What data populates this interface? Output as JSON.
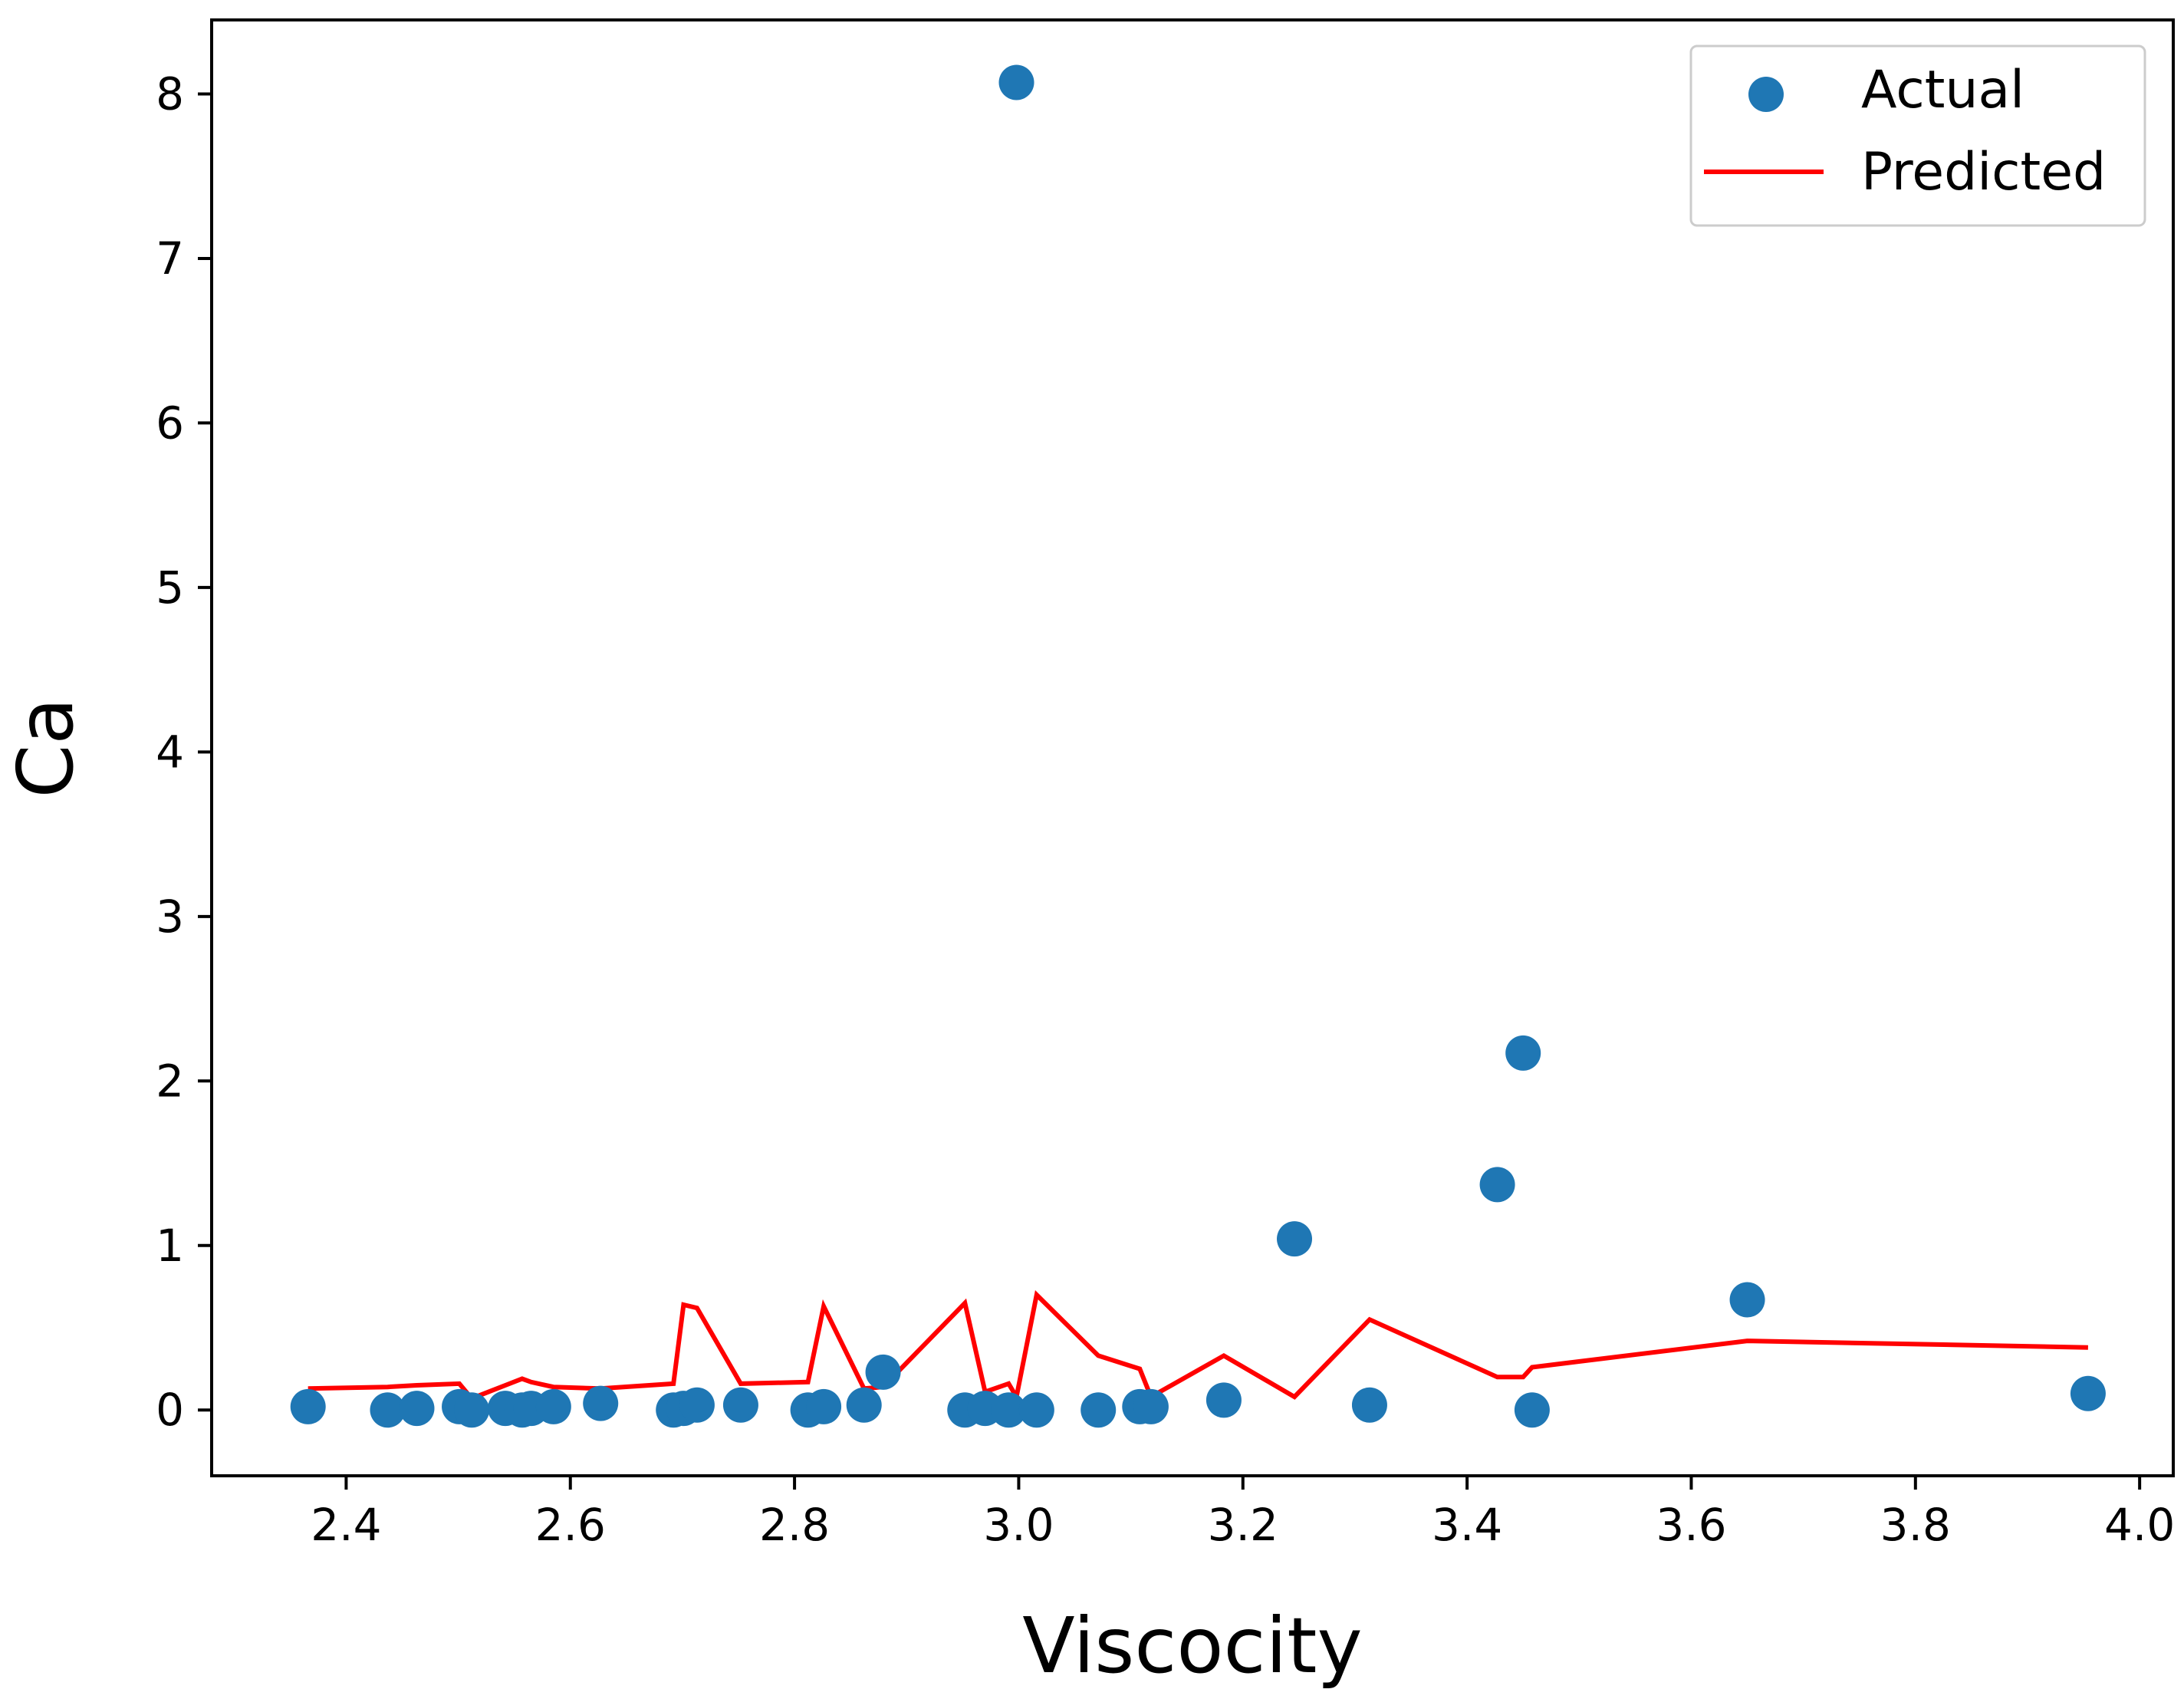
{
  "chart_data": {
    "type": "scatter",
    "title": "",
    "xlabel": "Viscocity",
    "ylabel": "Ca",
    "xlim": [
      2.28,
      4.03
    ],
    "ylim": [
      -0.4,
      8.45
    ],
    "xticks": [
      "2.4",
      "2.6",
      "2.8",
      "3.0",
      "3.2",
      "3.4",
      "3.6",
      "3.8",
      "4.0"
    ],
    "xtick_values": [
      2.4,
      2.6,
      2.8,
      3.0,
      3.2,
      3.4,
      3.6,
      3.8,
      4.0
    ],
    "yticks": [
      "0",
      "1",
      "2",
      "3",
      "4",
      "5",
      "6",
      "7",
      "8"
    ],
    "ytick_values": [
      0,
      1,
      2,
      3,
      4,
      5,
      6,
      7,
      8
    ],
    "grid": false,
    "legend": {
      "position": "top-right",
      "entries": [
        "Actual",
        "Predicted"
      ]
    },
    "colors": {
      "actual": "#1f77b4",
      "predicted": "#ff0000"
    },
    "series": [
      {
        "name": "Actual",
        "kind": "scatter",
        "x": [
          2.366,
          2.437,
          2.463,
          2.501,
          2.512,
          2.542,
          2.557,
          2.565,
          2.585,
          2.627,
          2.692,
          2.701,
          2.713,
          2.752,
          2.812,
          2.826,
          2.862,
          2.879,
          2.952,
          2.97,
          2.991,
          2.998,
          3.016,
          3.071,
          3.108,
          3.118,
          3.183,
          3.246,
          3.313,
          3.427,
          3.45,
          3.458,
          3.65,
          3.954
        ],
        "y": [
          0.02,
          0.0,
          0.01,
          0.02,
          0.0,
          0.01,
          0.0,
          0.01,
          0.02,
          0.04,
          0.0,
          0.01,
          0.03,
          0.03,
          0.0,
          0.02,
          0.03,
          0.23,
          0.0,
          0.01,
          0.0,
          8.07,
          0.0,
          0.0,
          0.02,
          0.02,
          0.06,
          1.04,
          0.03,
          1.37,
          2.17,
          0.0,
          0.67,
          0.1
        ]
      },
      {
        "name": "Predicted",
        "kind": "line",
        "x": [
          2.366,
          2.437,
          2.463,
          2.501,
          2.512,
          2.542,
          2.557,
          2.565,
          2.585,
          2.627,
          2.692,
          2.701,
          2.713,
          2.752,
          2.812,
          2.826,
          2.862,
          2.879,
          2.952,
          2.97,
          2.991,
          2.998,
          3.016,
          3.071,
          3.108,
          3.118,
          3.183,
          3.246,
          3.313,
          3.427,
          3.45,
          3.458,
          3.65,
          3.954
        ],
        "y": [
          0.13,
          0.14,
          0.15,
          0.16,
          0.07,
          0.15,
          0.19,
          0.17,
          0.14,
          0.13,
          0.16,
          0.64,
          0.62,
          0.16,
          0.17,
          0.63,
          0.13,
          0.14,
          0.65,
          0.11,
          0.16,
          0.08,
          0.7,
          0.33,
          0.25,
          0.08,
          0.33,
          0.08,
          0.55,
          0.2,
          0.2,
          0.26,
          0.42,
          0.38
        ]
      }
    ]
  }
}
